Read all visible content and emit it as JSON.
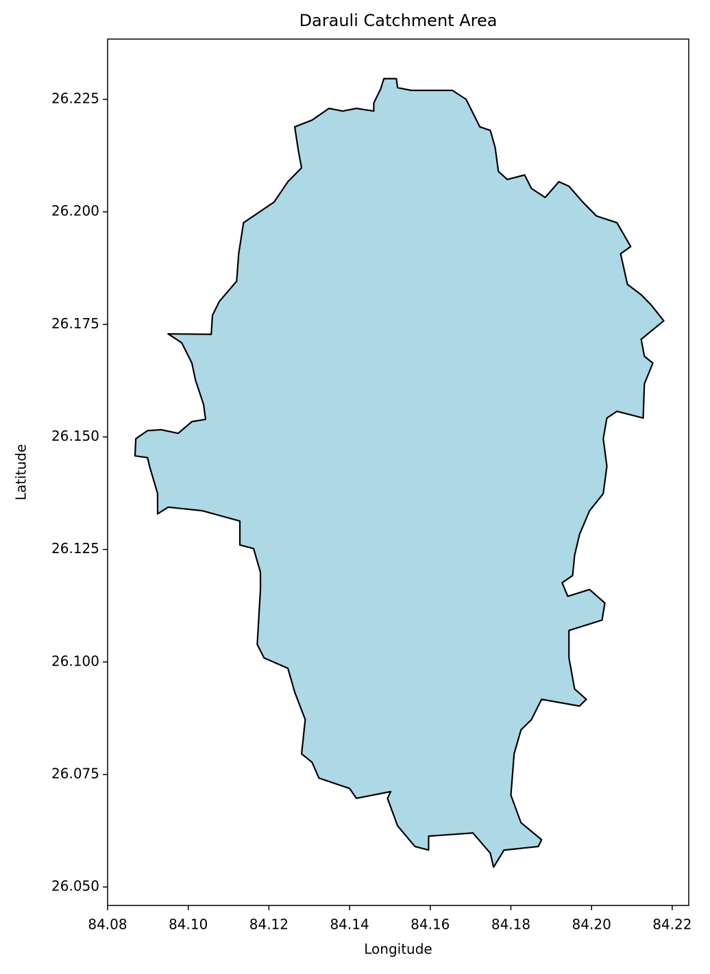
{
  "chart_data": {
    "type": "map",
    "title": "Darauli Catchment Area",
    "x_label": "Longitude",
    "y_label": "Latitude",
    "xlim": [
      84.08,
      84.2241
    ],
    "ylim": [
      26.0459,
      26.2384
    ],
    "xticks": [
      84.08,
      {
        "value": 84.1,
        "label": "84.10"
      },
      84.12,
      84.14,
      84.16,
      84.18,
      {
        "value": 84.2,
        "label": "84.20"
      },
      84.22
    ],
    "yticks": [
      {
        "value": 26.05,
        "label": "26.050"
      },
      26.075,
      {
        "value": 26.1,
        "label": "26.100"
      },
      26.125,
      {
        "value": 26.15,
        "label": "26.150"
      },
      26.175,
      {
        "value": 26.2,
        "label": "26.200"
      },
      26.225
    ],
    "grid": false,
    "color": "#add8e6",
    "edgecolor": "#000000",
    "polygon": {
      "x": [
        84.1485,
        84.1516,
        84.1519,
        84.1553,
        84.1624,
        84.1655,
        84.1689,
        84.1723,
        84.1749,
        84.1761,
        84.1769,
        84.1791,
        84.1834,
        84.1851,
        84.1885,
        84.1919,
        84.1944,
        84.1978,
        84.2012,
        84.2063,
        84.2097,
        84.2072,
        84.2089,
        84.2123,
        84.2148,
        84.2179,
        84.2123,
        84.2131,
        84.2152,
        84.2131,
        84.2128,
        84.2063,
        84.2038,
        84.2029,
        84.2038,
        84.2029,
        84.1995,
        84.197,
        84.1958,
        84.1953,
        84.1927,
        84.1941,
        84.1995,
        84.2033,
        84.2026,
        84.1944,
        84.1944,
        84.1958,
        84.1987,
        84.197,
        84.1876,
        84.1851,
        84.1825,
        84.1808,
        84.18,
        84.1825,
        84.1876,
        84.1868,
        84.1783,
        84.1757,
        84.1749,
        84.1706,
        84.1596,
        84.1596,
        84.1562,
        84.1519,
        84.1494,
        84.1502,
        84.1417,
        84.14,
        84.1324,
        84.1307,
        84.1281,
        84.129,
        84.1264,
        84.1247,
        84.1188,
        84.1171,
        84.1179,
        84.1179,
        84.1162,
        84.1128,
        84.1128,
        84.1035,
        84.095,
        84.0924,
        84.0924,
        84.0904,
        84.0899,
        84.0868,
        84.087,
        84.0899,
        84.0933,
        84.0975,
        84.1009,
        84.1043,
        84.1038,
        84.1018,
        84.1009,
        84.0984,
        84.095,
        84.1057,
        84.106,
        84.1077,
        84.112,
        84.1125,
        84.1137,
        84.1162,
        84.1213,
        84.1247,
        84.1281,
        84.1273,
        84.1264,
        84.1307,
        84.1349,
        84.1383,
        84.1417,
        84.146,
        84.146,
        84.1477
      ],
      "y": [
        26.2296,
        26.2296,
        26.2276,
        26.227,
        26.227,
        26.227,
        26.225,
        26.2189,
        26.2181,
        26.2143,
        26.209,
        26.2072,
        26.2082,
        26.2052,
        26.2032,
        26.2067,
        26.2057,
        26.2022,
        26.1991,
        26.1976,
        26.1923,
        26.1907,
        26.1839,
        26.1816,
        26.1793,
        26.1758,
        26.1717,
        26.1679,
        26.1664,
        26.1618,
        26.1542,
        26.1557,
        26.1542,
        26.1496,
        26.1435,
        26.1374,
        26.1336,
        26.1283,
        26.1237,
        26.1192,
        26.1176,
        26.1146,
        26.1161,
        26.1131,
        26.1093,
        26.107,
        26.1009,
        26.094,
        26.0917,
        26.0902,
        26.0917,
        26.0872,
        26.0849,
        26.0796,
        26.0704,
        26.0643,
        26.0605,
        26.059,
        26.0582,
        26.0544,
        26.0575,
        26.062,
        26.0613,
        26.0582,
        26.059,
        26.0636,
        26.0697,
        26.0712,
        26.0697,
        26.0719,
        26.0742,
        26.0777,
        26.0796,
        26.0872,
        26.0933,
        26.0986,
        26.1009,
        26.1039,
        26.1161,
        26.1199,
        26.1252,
        26.126,
        26.1313,
        26.1336,
        26.1344,
        26.1329,
        26.1374,
        26.1435,
        26.1454,
        26.1458,
        26.1496,
        26.1514,
        26.1516,
        26.1508,
        26.1534,
        26.1539,
        26.1572,
        26.1626,
        26.1664,
        26.1709,
        26.1729,
        26.1728,
        26.177,
        26.1801,
        26.1846,
        26.1907,
        26.1976,
        26.1991,
        26.2022,
        26.2067,
        26.2098,
        26.2136,
        26.2189,
        26.2204,
        26.223,
        26.2224,
        26.223,
        26.2224,
        26.2242,
        26.2273
      ]
    }
  }
}
